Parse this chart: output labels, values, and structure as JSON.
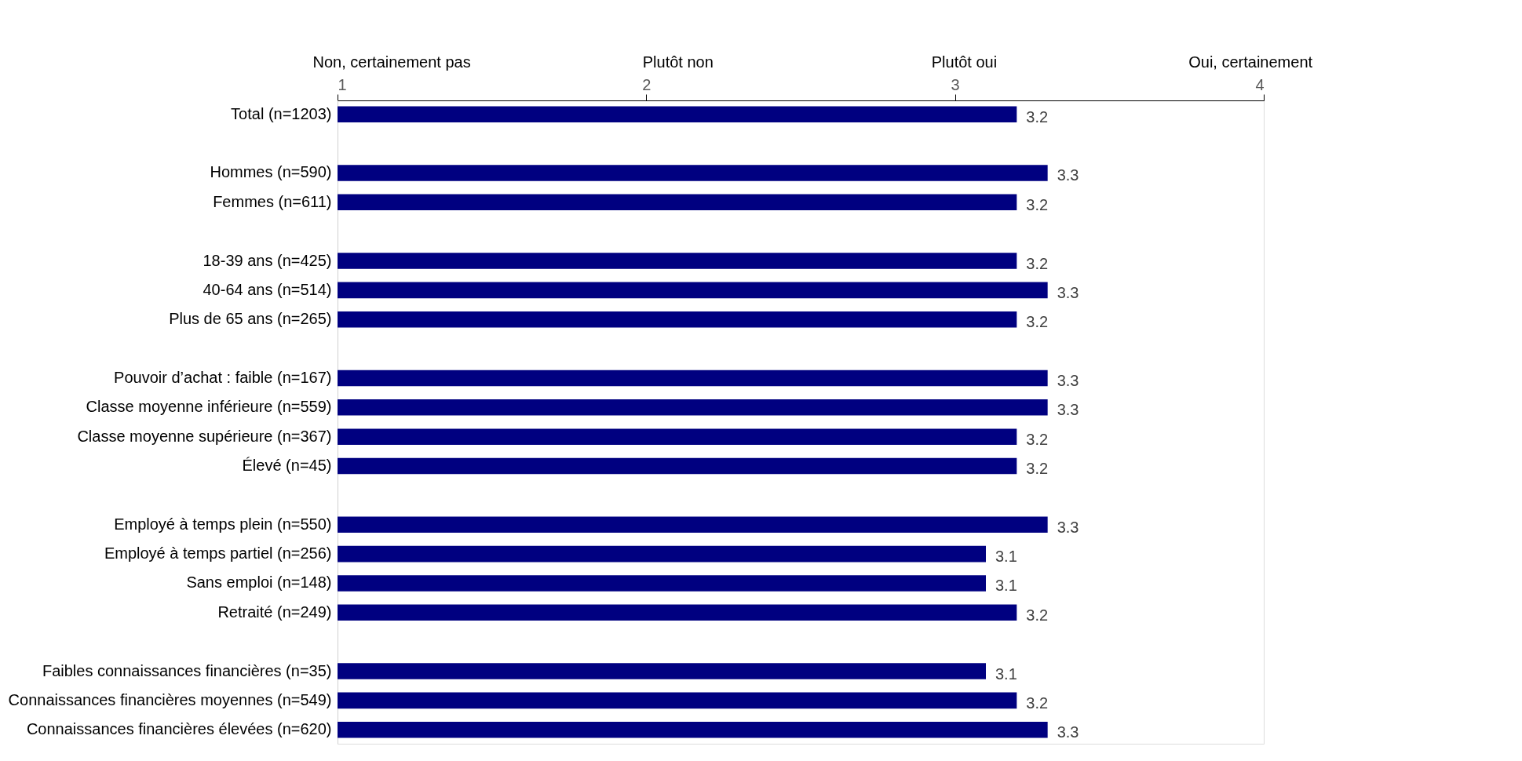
{
  "chart_data": {
    "type": "bar",
    "orientation": "horizontal",
    "categories": [
      "Total (n=1203)",
      null,
      "Hommes (n=590)",
      "Femmes (n=611)",
      null,
      "18-39 ans (n=425)",
      "40-64 ans (n=514)",
      "Plus de 65 ans (n=265)",
      null,
      "Pouvoir d’achat : faible (n=167)",
      "Classe moyenne inférieure (n=559)",
      "Classe moyenne supérieure (n=367)",
      "Élevé (n=45)",
      null,
      "Employé à temps plein (n=550)",
      "Employé à temps partiel (n=256)",
      "Sans emploi (n=148)",
      "Retraité (n=249)",
      null,
      "Faibles connaissances financières (n=35)",
      "Connaissances financières moyennes (n=549)",
      "Connaissances financières élevées (n=620)"
    ],
    "values": [
      3.2,
      null,
      3.3,
      3.2,
      null,
      3.2,
      3.3,
      3.2,
      null,
      3.3,
      3.3,
      3.2,
      3.2,
      null,
      3.3,
      3.1,
      3.1,
      3.2,
      null,
      3.1,
      3.2,
      3.3
    ],
    "color": "#000080",
    "xlim": [
      1,
      4
    ],
    "xticks": [
      1,
      2,
      3,
      4
    ],
    "annotations": [
      "Non, certainement pas",
      "Plutôt non",
      "Plutôt oui",
      "Oui, certainement"
    ],
    "data_labels": true,
    "grid": false
  }
}
